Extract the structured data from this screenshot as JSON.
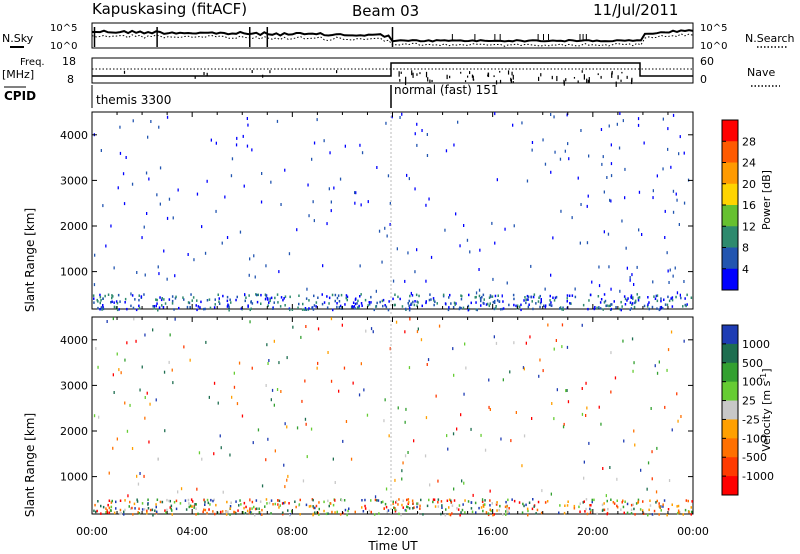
{
  "header": {
    "station": "Kapuskasing (fitACF)",
    "beam": "Beam 03",
    "date": "11/Jul/2011"
  },
  "top_panels": {
    "nsky_label": "N.Sky",
    "nsky_ticks": [
      "10^5",
      "10^0"
    ],
    "nsearch_label": "N.Search",
    "nsearch_ticks": [
      "10^5",
      "10^0"
    ],
    "freq_label": "Freq.",
    "freq_unit": "[MHz]",
    "freq_ticks": [
      "18",
      "8"
    ],
    "nave_label": "Nave",
    "nave_ticks": [
      "60",
      "0"
    ],
    "cpid_label": "CPID",
    "cpid_segments": [
      {
        "name": "themis 3300",
        "start_hour": 0,
        "end_hour": 12
      },
      {
        "name": "normal (fast) 151",
        "start_hour": 12,
        "end_hour": 24
      }
    ]
  },
  "chart_data": [
    {
      "type": "heatmap",
      "title": "",
      "ylabel": "Slant Range [km]",
      "xlabel": "",
      "x_range_hours": [
        0,
        24
      ],
      "ylim": [
        180,
        4500
      ],
      "y_ticks": [
        "1000",
        "2000",
        "3000",
        "4000"
      ],
      "colorbar": {
        "label": "Power [dB]",
        "ticks": [
          "4",
          "8",
          "12",
          "16",
          "20",
          "24",
          "28"
        ],
        "colors": [
          "#0000ff",
          "#2255b0",
          "#2e8a6e",
          "#66c030",
          "#ffd400",
          "#ff9a00",
          "#ff5a00",
          "#ff0000"
        ]
      },
      "echo_regions": [
        {
          "t0": 0.0,
          "t1": 1.0,
          "r0": 1300,
          "r1": 1800,
          "level": "weak"
        },
        {
          "t0": 2.5,
          "t1": 6.0,
          "r0": 1300,
          "r1": 2300,
          "level": "moderate"
        },
        {
          "t0": 7.3,
          "t1": 8.5,
          "r0": 800,
          "r1": 1300,
          "level": "moderate"
        },
        {
          "t0": 8.5,
          "t1": 9.5,
          "r0": 180,
          "r1": 500,
          "level": "strong"
        },
        {
          "t0": 22.5,
          "t1": 24.0,
          "r0": 400,
          "r1": 1800,
          "level": "moderate"
        }
      ]
    },
    {
      "type": "heatmap",
      "title": "",
      "ylabel": "Slant Range [km]",
      "xlabel": "Time UT",
      "x_range_hours": [
        0,
        24
      ],
      "x_ticks": [
        "00:00",
        "04:00",
        "08:00",
        "12:00",
        "16:00",
        "20:00",
        "00:00"
      ],
      "ylim": [
        180,
        4500
      ],
      "y_ticks": [
        "1000",
        "2000",
        "3000",
        "4000"
      ],
      "colorbar": {
        "label": "Velocity [m s^-1]",
        "label_parts": [
          "Velocity  [m s",
          "-1",
          "]"
        ],
        "ticks": [
          "1000",
          "500",
          "100",
          "25",
          "-25",
          "-100",
          "-500",
          "-1000"
        ],
        "colors": [
          "#1e3cb4",
          "#1e6e50",
          "#33a030",
          "#66cc33",
          "#c8c8c8",
          "#ffa000",
          "#ff7000",
          "#ff3a00",
          "#ff0000"
        ]
      },
      "echo_regions": [
        {
          "t0": 0.0,
          "t1": 6.0,
          "r0": 1300,
          "r1": 2300,
          "level": "ground"
        },
        {
          "t0": 3.3,
          "t1": 5.5,
          "r0": 1000,
          "r1": 1400,
          "level": "negative"
        },
        {
          "t0": 7.5,
          "t1": 8.3,
          "r0": 900,
          "r1": 1400,
          "level": "positive"
        },
        {
          "t0": 8.5,
          "t1": 9.8,
          "r0": 200,
          "r1": 500,
          "level": "mixed"
        },
        {
          "t0": 22.5,
          "t1": 24.0,
          "r0": 500,
          "r1": 1800,
          "level": "negative"
        }
      ]
    }
  ]
}
